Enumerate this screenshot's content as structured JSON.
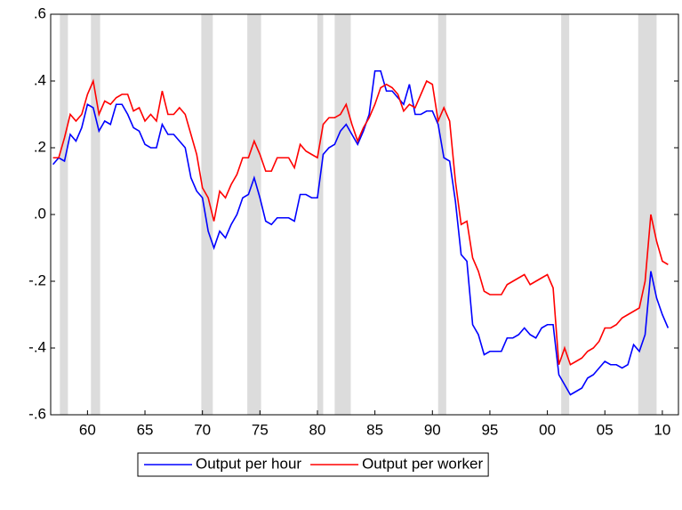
{
  "chart_data": {
    "type": "line",
    "x": [
      1957,
      1957.5,
      1958,
      1958.5,
      1959,
      1959.5,
      1960,
      1960.5,
      1961,
      1961.5,
      1962,
      1962.5,
      1963,
      1963.5,
      1964,
      1964.5,
      1965,
      1965.5,
      1966,
      1966.5,
      1967,
      1967.5,
      1968,
      1968.5,
      1969,
      1969.5,
      1970,
      1970.5,
      1971,
      1971.5,
      1972,
      1972.5,
      1973,
      1973.5,
      1974,
      1974.5,
      1975,
      1975.5,
      1976,
      1976.5,
      1977,
      1977.5,
      1978,
      1978.5,
      1979,
      1979.5,
      1980,
      1980.5,
      1981,
      1981.5,
      1982,
      1982.5,
      1983,
      1983.5,
      1984,
      1984.5,
      1985,
      1985.5,
      1986,
      1986.5,
      1987,
      1987.5,
      1988,
      1988.5,
      1989,
      1989.5,
      1990,
      1990.5,
      1991,
      1991.5,
      1992,
      1992.5,
      1993,
      1993.5,
      1994,
      1994.5,
      1995,
      1995.5,
      1996,
      1996.5,
      1997,
      1997.5,
      1998,
      1998.5,
      1999,
      1999.5,
      2000,
      2000.5,
      2001,
      2001.5,
      2002,
      2002.5,
      2003,
      2003.5,
      2004,
      2004.5,
      2005,
      2005.5,
      2006,
      2006.5,
      2007,
      2007.5,
      2008,
      2008.5,
      2009,
      2009.5,
      2010,
      2010.5
    ],
    "series": [
      {
        "name": "Output per hour",
        "color": "#0000ff",
        "values": [
          0.15,
          0.17,
          0.16,
          0.24,
          0.22,
          0.26,
          0.33,
          0.32,
          0.25,
          0.28,
          0.27,
          0.33,
          0.33,
          0.3,
          0.26,
          0.25,
          0.21,
          0.2,
          0.2,
          0.27,
          0.24,
          0.24,
          0.22,
          0.2,
          0.11,
          0.07,
          0.05,
          -0.05,
          -0.1,
          -0.05,
          -0.07,
          -0.03,
          0.0,
          0.05,
          0.06,
          0.11,
          0.05,
          -0.02,
          -0.03,
          -0.01,
          -0.01,
          -0.01,
          -0.02,
          0.06,
          0.06,
          0.05,
          0.05,
          0.18,
          0.2,
          0.21,
          0.25,
          0.27,
          0.24,
          0.21,
          0.25,
          0.3,
          0.43,
          0.43,
          0.37,
          0.37,
          0.35,
          0.33,
          0.39,
          0.3,
          0.3,
          0.31,
          0.31,
          0.27,
          0.17,
          0.16,
          0.04,
          -0.12,
          -0.14,
          -0.33,
          -0.36,
          -0.42,
          -0.41,
          -0.41,
          -0.41,
          -0.37,
          -0.37,
          -0.36,
          -0.34,
          -0.36,
          -0.37,
          -0.34,
          -0.33,
          -0.33,
          -0.48,
          -0.51,
          -0.54,
          -0.53,
          -0.52,
          -0.49,
          -0.48,
          -0.46,
          -0.44,
          -0.45,
          -0.45,
          -0.46,
          -0.45,
          -0.39,
          -0.41,
          -0.36,
          -0.17,
          -0.25,
          -0.3,
          -0.34
        ]
      },
      {
        "name": "Output per worker",
        "color": "#ff0000",
        "values": [
          0.17,
          0.17,
          0.23,
          0.3,
          0.28,
          0.3,
          0.36,
          0.4,
          0.3,
          0.34,
          0.33,
          0.35,
          0.36,
          0.36,
          0.31,
          0.32,
          0.28,
          0.3,
          0.28,
          0.37,
          0.3,
          0.3,
          0.32,
          0.3,
          0.24,
          0.18,
          0.08,
          0.05,
          -0.02,
          0.07,
          0.05,
          0.09,
          0.12,
          0.17,
          0.17,
          0.22,
          0.18,
          0.13,
          0.13,
          0.17,
          0.17,
          0.17,
          0.14,
          0.21,
          0.19,
          0.18,
          0.17,
          0.27,
          0.29,
          0.29,
          0.3,
          0.33,
          0.27,
          0.22,
          0.26,
          0.29,
          0.33,
          0.38,
          0.39,
          0.38,
          0.36,
          0.31,
          0.33,
          0.32,
          0.36,
          0.4,
          0.39,
          0.28,
          0.32,
          0.28,
          0.1,
          -0.03,
          -0.02,
          -0.13,
          -0.17,
          -0.23,
          -0.24,
          -0.24,
          -0.24,
          -0.21,
          -0.2,
          -0.19,
          -0.18,
          -0.21,
          -0.2,
          -0.19,
          -0.18,
          -0.22,
          -0.45,
          -0.4,
          -0.45,
          -0.44,
          -0.43,
          -0.41,
          -0.4,
          -0.38,
          -0.34,
          -0.34,
          -0.33,
          -0.31,
          -0.3,
          -0.29,
          -0.28,
          -0.2,
          0.0,
          -0.08,
          -0.14,
          -0.15
        ]
      }
    ],
    "shaded_ranges": [
      [
        1957.6,
        1958.3
      ],
      [
        1960.3,
        1961.1
      ],
      [
        1969.9,
        1970.9
      ],
      [
        1973.9,
        1975.1
      ],
      [
        1980.0,
        1980.5
      ],
      [
        1981.5,
        1982.9
      ],
      [
        1990.5,
        1991.2
      ],
      [
        2001.2,
        2001.9
      ],
      [
        2007.9,
        2009.5
      ]
    ],
    "shade_color": "#dcdcdc",
    "xlim": [
      1956.8,
      2011.4
    ],
    "xticks": [
      {
        "value": 1960,
        "label": "60"
      },
      {
        "value": 1965,
        "label": "65"
      },
      {
        "value": 1970,
        "label": "70"
      },
      {
        "value": 1975,
        "label": "75"
      },
      {
        "value": 1980,
        "label": "80"
      },
      {
        "value": 1985,
        "label": "85"
      },
      {
        "value": 1990,
        "label": "90"
      },
      {
        "value": 1995,
        "label": "95"
      },
      {
        "value": 2000,
        "label": "00"
      },
      {
        "value": 2005,
        "label": "05"
      },
      {
        "value": 2010,
        "label": "10"
      }
    ],
    "ylim": [
      -0.6,
      0.6
    ],
    "yticks": [
      {
        "value": -0.6,
        "label": "-.6"
      },
      {
        "value": -0.4,
        "label": "-.4"
      },
      {
        "value": -0.2,
        "label": "-.2"
      },
      {
        "value": 0,
        "label": ".0"
      },
      {
        "value": 0.2,
        "label": ".2"
      },
      {
        "value": 0.4,
        "label": ".4"
      },
      {
        "value": 0.6,
        "label": ".6"
      }
    ],
    "legend": "bottom"
  }
}
